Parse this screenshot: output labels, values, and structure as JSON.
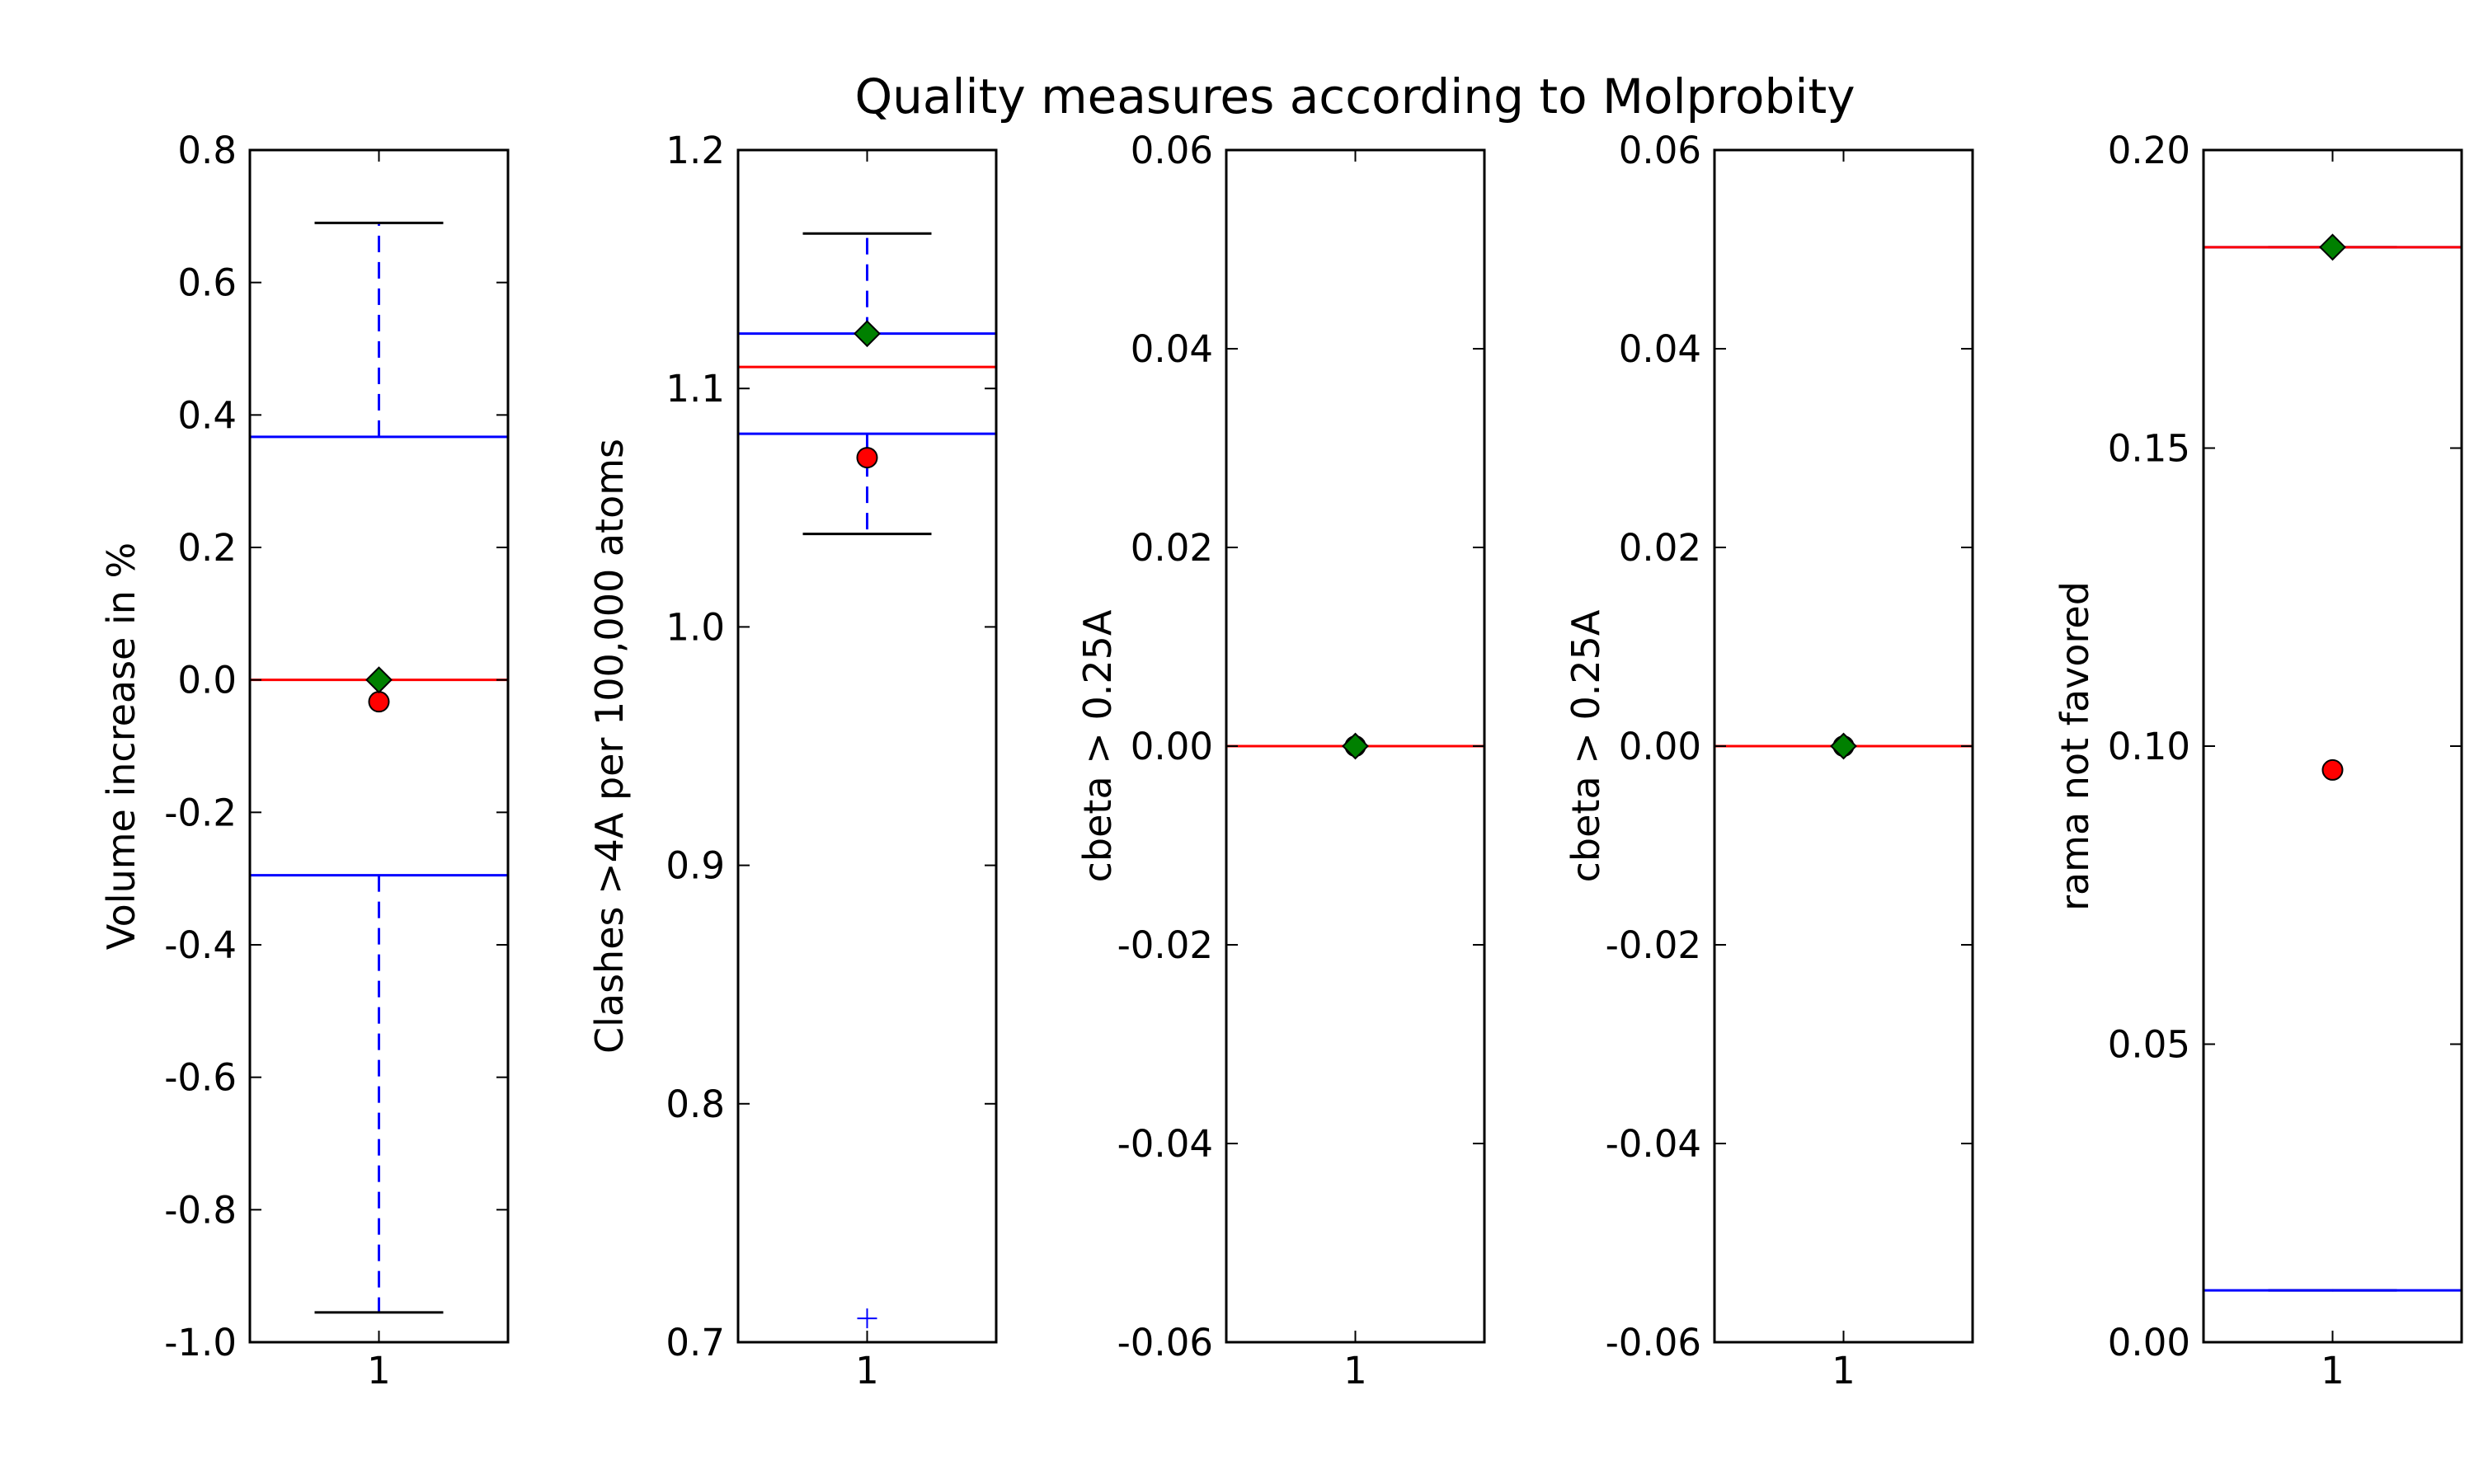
{
  "chart_data": {
    "title": "Quality measures according to Molprobity",
    "type": "boxplot",
    "panels": [
      {
        "ylabel": "Volume increase in %",
        "categories": [
          "1"
        ],
        "ylim": [
          -1.0,
          0.8
        ],
        "yticks": [
          "-1.0",
          "-0.8",
          "-0.6",
          "-0.4",
          "-0.2",
          "0.0",
          "0.2",
          "0.4",
          "0.6",
          "0.8"
        ],
        "ytick_values": [
          -1.0,
          -0.8,
          -0.6,
          -0.4,
          -0.2,
          0.0,
          0.2,
          0.4,
          0.6,
          0.8
        ],
        "box": {
          "q1": -0.295,
          "median": 0.0,
          "q3": 0.367,
          "whisker_low": -0.955,
          "whisker_high": 0.69
        },
        "outliers": [],
        "mean_marker": -0.033,
        "reference_marker": 0.0
      },
      {
        "ylabel": "Clashes >4A per 100,000 atoms",
        "categories": [
          "1"
        ],
        "ylim": [
          0.7,
          1.2
        ],
        "yticks": [
          "0.7",
          "0.8",
          "0.9",
          "1.0",
          "1.1",
          "1.2"
        ],
        "ytick_values": [
          0.7,
          0.8,
          0.9,
          1.0,
          1.1,
          1.2
        ],
        "box": {
          "q1": 1.081,
          "median": 1.109,
          "q3": 1.123,
          "whisker_low": 1.039,
          "whisker_high": 1.165
        },
        "outliers": [
          0.71
        ],
        "mean_marker": 1.071,
        "reference_marker": 1.123
      },
      {
        "ylabel": "cbeta > 0.25A",
        "categories": [
          "1"
        ],
        "ylim": [
          -0.06,
          0.06
        ],
        "yticks": [
          "-0.06",
          "-0.04",
          "-0.02",
          "0.00",
          "0.02",
          "0.04",
          "0.06"
        ],
        "ytick_values": [
          -0.06,
          -0.04,
          -0.02,
          0.0,
          0.02,
          0.04,
          0.06
        ],
        "box": {
          "q1": 0.0,
          "median": 0.0,
          "q3": 0.0,
          "whisker_low": 0.0,
          "whisker_high": 0.0
        },
        "outliers": [],
        "mean_marker": 0.0,
        "reference_marker": 0.0
      },
      {
        "ylabel": "cbeta > 0.25A",
        "categories": [
          "1"
        ],
        "ylim": [
          -0.06,
          0.06
        ],
        "yticks": [
          "-0.06",
          "-0.04",
          "-0.02",
          "0.00",
          "0.02",
          "0.04",
          "0.06"
        ],
        "ytick_values": [
          -0.06,
          -0.04,
          -0.02,
          0.0,
          0.02,
          0.04,
          0.06
        ],
        "box": {
          "q1": 0.0,
          "median": 0.0,
          "q3": 0.0,
          "whisker_low": 0.0,
          "whisker_high": 0.0
        },
        "outliers": [],
        "mean_marker": 0.0,
        "reference_marker": 0.0
      },
      {
        "ylabel": "rama not favored",
        "categories": [
          "1"
        ],
        "ylim": [
          0.0,
          0.2
        ],
        "yticks": [
          "0.00",
          "0.05",
          "0.10",
          "0.15",
          "0.20"
        ],
        "ytick_values": [
          0.0,
          0.05,
          0.1,
          0.15,
          0.2
        ],
        "box": {
          "q1": 0.0087,
          "median": 0.1837,
          "q3": 0.1837,
          "whisker_low": 0.0087,
          "whisker_high": 0.1837
        },
        "outliers": [],
        "mean_marker": 0.096,
        "reference_marker": 0.1837
      }
    ],
    "colors": {
      "box": "#0000ff",
      "median": "#ff0000",
      "whisker_cap": "#000000",
      "mean_marker": "#ff0000",
      "reference_marker": "#008000",
      "axes": "#000000"
    }
  }
}
